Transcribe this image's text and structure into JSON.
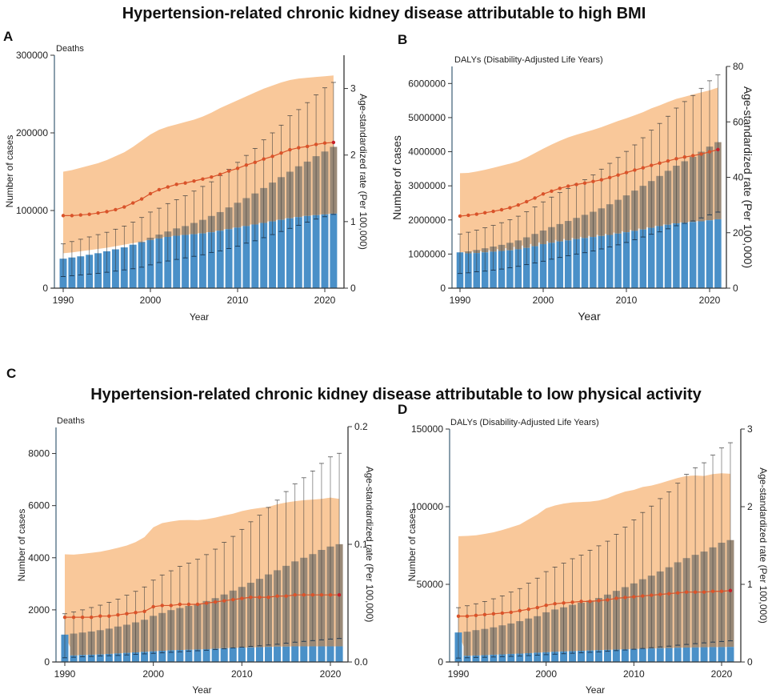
{
  "titles": {
    "top": "Hypertension-related chronic kidney disease attributable to high BMI",
    "bottom": "Hypertension-related chronic kidney disease attributable to low physical activity"
  },
  "colors": {
    "band": "#f9c89a",
    "bar_blue": "#4a90c8",
    "bar_grey": "#9a8a78",
    "rate_line": "#d9532a",
    "axis": "#4a6a80"
  },
  "chart_data": [
    {
      "panel": "A",
      "type": "bar",
      "measure": "Deaths",
      "xlabel": "Year",
      "ylabel": "Number of cases",
      "y2label": "Age-standardized rate (Per 100,000)",
      "ylim": [
        0,
        300000
      ],
      "y2lim": [
        0,
        3.5
      ],
      "yticks": [
        "0",
        "100000",
        "200000",
        "300000"
      ],
      "y2ticks": [
        "0",
        "1",
        "2",
        "3"
      ],
      "xticks": [
        "1990",
        "2000",
        "2010",
        "2020"
      ],
      "years": [
        1990,
        1991,
        1992,
        1993,
        1994,
        1995,
        1996,
        1997,
        1998,
        1999,
        2000,
        2001,
        2002,
        2003,
        2004,
        2005,
        2006,
        2007,
        2008,
        2009,
        2010,
        2011,
        2012,
        2013,
        2014,
        2015,
        2016,
        2017,
        2018,
        2019,
        2020,
        2021
      ],
      "cases_total": [
        38000,
        39500,
        41000,
        43000,
        45000,
        47500,
        50000,
        52500,
        56000,
        60000,
        65000,
        69000,
        73000,
        77000,
        80000,
        84000,
        88000,
        93000,
        98000,
        104000,
        110000,
        116000,
        122000,
        129000,
        136000,
        143000,
        150000,
        157000,
        163000,
        170000,
        176000,
        182000
      ],
      "cases_blue": [
        38000,
        39500,
        41000,
        43000,
        45000,
        47500,
        50000,
        52500,
        56000,
        59000,
        62000,
        64000,
        66000,
        67500,
        68500,
        69500,
        70500,
        72000,
        74000,
        76000,
        78000,
        80000,
        82000,
        84000,
        86000,
        88000,
        90000,
        91500,
        93000,
        94000,
        95000,
        96000
      ],
      "cases_upper": [
        57000,
        60000,
        63000,
        66000,
        69000,
        72000,
        76000,
        80000,
        85000,
        91000,
        98000,
        103000,
        109000,
        114000,
        119000,
        125000,
        131000,
        137000,
        145000,
        153000,
        162000,
        171000,
        180000,
        191000,
        200000,
        210000,
        222000,
        230000,
        239000,
        249000,
        258000,
        265000
      ],
      "cases_lower": [
        15000,
        16000,
        17000,
        18000,
        19000,
        20500,
        22000,
        23500,
        25000,
        27000,
        30000,
        33000,
        35000,
        37000,
        39000,
        41000,
        43000,
        46000,
        48000,
        51000,
        54000,
        58000,
        61000,
        65000,
        69000,
        73000,
        77000,
        81000,
        85000,
        89000,
        92000,
        95000
      ],
      "band_upper": [
        150000,
        152000,
        155000,
        158000,
        161000,
        165000,
        170000,
        175000,
        182000,
        190000,
        198000,
        204000,
        208000,
        211000,
        214000,
        217000,
        221000,
        226000,
        232000,
        237000,
        242000,
        247000,
        252000,
        257000,
        261000,
        265000,
        268000,
        270000,
        271000,
        272000,
        273000,
        274000
      ],
      "band_lower": [
        45000,
        46000,
        47500,
        49000,
        50500,
        52000,
        54000,
        56000,
        58000,
        60000,
        63000,
        65000,
        66500,
        68000,
        69000,
        70000,
        71500,
        73000,
        75000,
        77000,
        79000,
        81000,
        83000,
        85000,
        87000,
        89000,
        91000,
        92500,
        93500,
        94500,
        95500,
        96000
      ],
      "rate": [
        1.09,
        1.09,
        1.1,
        1.11,
        1.13,
        1.15,
        1.18,
        1.22,
        1.28,
        1.34,
        1.42,
        1.48,
        1.52,
        1.56,
        1.58,
        1.61,
        1.64,
        1.67,
        1.71,
        1.76,
        1.8,
        1.85,
        1.89,
        1.94,
        1.98,
        2.03,
        2.08,
        2.11,
        2.13,
        2.16,
        2.18,
        2.19
      ]
    },
    {
      "panel": "B",
      "type": "bar",
      "measure": "DALYs (Disability-Adjusted Life Years)",
      "xlabel": "Year",
      "ylabel": "Number of cases",
      "y2label": "Age-standardized rate (Per 100,000)",
      "ylim": [
        0,
        6500000
      ],
      "y2lim": [
        0,
        80
      ],
      "yticks": [
        "0",
        "1000000",
        "2000000",
        "3000000",
        "4000000",
        "5000000",
        "6000000"
      ],
      "y2ticks": [
        "0",
        "20",
        "40",
        "60",
        "80"
      ],
      "xticks": [
        "1990",
        "2000",
        "2010",
        "2020"
      ],
      "years": [
        1990,
        1991,
        1992,
        1993,
        1994,
        1995,
        1996,
        1997,
        1998,
        1999,
        2000,
        2001,
        2002,
        2003,
        2004,
        2005,
        2006,
        2007,
        2008,
        2009,
        2010,
        2011,
        2012,
        2013,
        2014,
        2015,
        2016,
        2017,
        2018,
        2019,
        2020,
        2021
      ],
      "cases_total": [
        1050000,
        1080000,
        1120000,
        1170000,
        1220000,
        1270000,
        1330000,
        1400000,
        1490000,
        1590000,
        1690000,
        1790000,
        1880000,
        1970000,
        2060000,
        2150000,
        2240000,
        2340000,
        2460000,
        2590000,
        2720000,
        2860000,
        3000000,
        3140000,
        3290000,
        3440000,
        3590000,
        3720000,
        3850000,
        4000000,
        4150000,
        4280000
      ],
      "cases_blue": [
        1050000,
        1020000,
        1030000,
        1050000,
        1070000,
        1090000,
        1110000,
        1140000,
        1180000,
        1230000,
        1290000,
        1330000,
        1370000,
        1400000,
        1440000,
        1470000,
        1500000,
        1530000,
        1560000,
        1600000,
        1640000,
        1680000,
        1720000,
        1770000,
        1820000,
        1860000,
        1900000,
        1920000,
        1940000,
        1960000,
        1990000,
        2020000
      ],
      "cases_upper": [
        1590000,
        1640000,
        1700000,
        1770000,
        1840000,
        1920000,
        2010000,
        2110000,
        2240000,
        2380000,
        2530000,
        2670000,
        2800000,
        2920000,
        3050000,
        3180000,
        3320000,
        3490000,
        3660000,
        3830000,
        4010000,
        4200000,
        4410000,
        4630000,
        4830000,
        5040000,
        5280000,
        5470000,
        5650000,
        5860000,
        6080000,
        6250000
      ],
      "cases_lower": [
        430000,
        450000,
        480000,
        500000,
        530000,
        560000,
        600000,
        640000,
        690000,
        740000,
        790000,
        850000,
        900000,
        950000,
        1000000,
        1040000,
        1090000,
        1150000,
        1210000,
        1270000,
        1340000,
        1420000,
        1500000,
        1580000,
        1650000,
        1740000,
        1830000,
        1900000,
        1970000,
        2060000,
        2150000,
        2230000
      ],
      "band_upper": [
        3370000,
        3380000,
        3420000,
        3470000,
        3530000,
        3590000,
        3650000,
        3720000,
        3830000,
        3960000,
        4090000,
        4210000,
        4320000,
        4420000,
        4500000,
        4570000,
        4640000,
        4720000,
        4810000,
        4900000,
        4980000,
        5070000,
        5160000,
        5270000,
        5360000,
        5460000,
        5550000,
        5610000,
        5680000,
        5740000,
        5800000,
        5880000
      ],
      "band_lower": [
        1050000,
        1060000,
        1080000,
        1100000,
        1130000,
        1160000,
        1190000,
        1230000,
        1270000,
        1320000,
        1360000,
        1400000,
        1430000,
        1460000,
        1490000,
        1520000,
        1550000,
        1580000,
        1610000,
        1650000,
        1690000,
        1730000,
        1770000,
        1810000,
        1850000,
        1890000,
        1920000,
        1940000,
        1960000,
        1980000,
        2000000,
        2020000
      ],
      "rate": [
        26.0,
        26.3,
        26.7,
        27.2,
        27.7,
        28.3,
        29.0,
        30.0,
        31.2,
        32.5,
        34.0,
        35.0,
        36.0,
        36.8,
        37.4,
        37.9,
        38.5,
        39.1,
        39.9,
        40.8,
        41.7,
        42.6,
        43.4,
        44.3,
        45.1,
        45.9,
        46.7,
        47.3,
        47.8,
        48.4,
        49.2,
        50.0
      ]
    },
    {
      "panel": "C",
      "type": "bar",
      "measure": "Deaths",
      "xlabel": "Year",
      "ylabel": "Number of cases",
      "y2label": "Age-standardized rate (Per 100,000)",
      "ylim": [
        0,
        9000
      ],
      "y2lim": [
        0,
        0.2
      ],
      "yticks": [
        "0",
        "2000",
        "4000",
        "6000",
        "8000"
      ],
      "y2ticks": [
        "0.0",
        "0.1",
        "0.2"
      ],
      "xticks": [
        "1990",
        "2000",
        "2010",
        "2020"
      ],
      "years": [
        1990,
        1991,
        1992,
        1993,
        1994,
        1995,
        1996,
        1997,
        1998,
        1999,
        2000,
        2001,
        2002,
        2003,
        2004,
        2005,
        2006,
        2007,
        2008,
        2009,
        2010,
        2011,
        2012,
        2013,
        2014,
        2015,
        2016,
        2017,
        2018,
        2019,
        2020,
        2021
      ],
      "cases_total": [
        1050,
        1090,
        1130,
        1170,
        1220,
        1280,
        1360,
        1430,
        1520,
        1620,
        1770,
        1880,
        1990,
        2070,
        2150,
        2230,
        2340,
        2450,
        2590,
        2740,
        2880,
        3040,
        3190,
        3360,
        3520,
        3690,
        3860,
        4000,
        4140,
        4300,
        4430,
        4520
      ],
      "cases_blue": [
        1050,
        250,
        270,
        280,
        290,
        310,
        330,
        350,
        370,
        390,
        410,
        430,
        450,
        460,
        470,
        480,
        490,
        510,
        530,
        540,
        550,
        560,
        570,
        580,
        590,
        590,
        600,
        600,
        600,
        600,
        600,
        600
      ],
      "cases_upper": [
        1850,
        1920,
        2000,
        2090,
        2180,
        2290,
        2410,
        2560,
        2710,
        2880,
        3140,
        3340,
        3500,
        3670,
        3790,
        3940,
        4120,
        4330,
        4590,
        4820,
        5090,
        5380,
        5630,
        5930,
        6210,
        6540,
        6830,
        7070,
        7330,
        7620,
        7870,
        8010
      ],
      "cases_lower": [
        160,
        180,
        200,
        210,
        230,
        240,
        250,
        270,
        290,
        310,
        330,
        350,
        370,
        390,
        410,
        430,
        450,
        480,
        510,
        540,
        570,
        600,
        620,
        650,
        680,
        720,
        760,
        790,
        820,
        850,
        880,
        900
      ],
      "band_upper": [
        4130,
        4120,
        4150,
        4190,
        4230,
        4300,
        4380,
        4470,
        4600,
        4790,
        5170,
        5330,
        5390,
        5440,
        5450,
        5440,
        5480,
        5540,
        5620,
        5690,
        5790,
        5860,
        5910,
        5950,
        6050,
        6120,
        6170,
        6210,
        6230,
        6260,
        6310,
        6260
      ],
      "band_lower": [
        1050,
        250,
        270,
        280,
        290,
        310,
        330,
        350,
        370,
        390,
        410,
        430,
        450,
        460,
        470,
        480,
        490,
        510,
        530,
        540,
        550,
        560,
        570,
        580,
        590,
        590,
        600,
        600,
        600,
        600,
        600,
        600
      ],
      "rate": [
        0.038,
        0.038,
        0.038,
        0.038,
        0.039,
        0.039,
        0.04,
        0.041,
        0.042,
        0.043,
        0.047,
        0.048,
        0.048,
        0.049,
        0.049,
        0.049,
        0.05,
        0.051,
        0.052,
        0.053,
        0.054,
        0.055,
        0.055,
        0.055,
        0.056,
        0.056,
        0.057,
        0.057,
        0.057,
        0.057,
        0.057,
        0.057
      ]
    },
    {
      "panel": "D",
      "type": "bar",
      "measure": "DALYs (Disability-Adjusted Life Years)",
      "xlabel": "Year",
      "ylabel": "Number of cases",
      "y2label": "Age-standardized rate (Per 100,000)",
      "ylim": [
        0,
        150000
      ],
      "y2lim": [
        0,
        3
      ],
      "yticks": [
        "0",
        "50000",
        "100000",
        "150000"
      ],
      "y2ticks": [
        "0",
        "1",
        "2",
        "3"
      ],
      "xticks": [
        "1990",
        "2000",
        "2010",
        "2020"
      ],
      "years": [
        1990,
        1991,
        1992,
        1993,
        1994,
        1995,
        1996,
        1997,
        1998,
        1999,
        2000,
        2001,
        2002,
        2003,
        2004,
        2005,
        2006,
        2007,
        2008,
        2009,
        2010,
        2011,
        2012,
        2013,
        2014,
        2015,
        2016,
        2017,
        2018,
        2019,
        2020,
        2021
      ],
      "cases_total": [
        19000,
        19500,
        20500,
        21300,
        22300,
        23600,
        24800,
        26300,
        28000,
        29500,
        32000,
        33800,
        35200,
        36800,
        38200,
        39600,
        41200,
        43400,
        45800,
        48200,
        50600,
        53300,
        55600,
        58300,
        61000,
        64200,
        66900,
        69000,
        71100,
        73800,
        76800,
        78500
      ],
      "cases_blue": [
        19000,
        4000,
        4200,
        4400,
        4700,
        4900,
        5200,
        5400,
        5700,
        6000,
        6300,
        6600,
        6800,
        7000,
        7200,
        7400,
        7600,
        7800,
        8000,
        8200,
        8400,
        8500,
        8700,
        8900,
        9000,
        9200,
        9300,
        9400,
        9500,
        9600,
        9600,
        9700
      ],
      "cases_upper": [
        35000,
        36200,
        37500,
        39000,
        40700,
        42600,
        45000,
        47300,
        50700,
        54000,
        58200,
        61100,
        63600,
        66500,
        68800,
        72000,
        74800,
        77800,
        82200,
        86800,
        91500,
        96300,
        100400,
        105200,
        109600,
        115100,
        120800,
        125100,
        128300,
        133200,
        137800,
        141200
      ],
      "cases_lower": [
        2500,
        2700,
        2900,
        3000,
        3200,
        3400,
        3600,
        3800,
        4100,
        4400,
        4700,
        5000,
        5300,
        5600,
        5900,
        6200,
        6500,
        6900,
        7300,
        7700,
        8200,
        8700,
        9200,
        9700,
        10200,
        10800,
        11300,
        11800,
        12300,
        12800,
        13200,
        13600
      ],
      "band_upper": [
        81000,
        81200,
        81600,
        82500,
        83500,
        85000,
        86700,
        88500,
        91800,
        95000,
        99000,
        100800,
        102000,
        102800,
        103000,
        103300,
        104000,
        105500,
        107800,
        109700,
        110800,
        112700,
        113600,
        115100,
        116800,
        118500,
        119800,
        120100,
        119800,
        121000,
        121500,
        121200
      ],
      "band_lower": [
        19000,
        4000,
        4200,
        4400,
        4700,
        4900,
        5200,
        5400,
        5700,
        6000,
        6300,
        6600,
        6800,
        7000,
        7200,
        7400,
        7600,
        7800,
        8000,
        8200,
        8400,
        8500,
        8700,
        8900,
        9000,
        9200,
        9300,
        9400,
        9500,
        9600,
        9600,
        9700
      ],
      "rate": [
        0.59,
        0.59,
        0.6,
        0.61,
        0.62,
        0.63,
        0.64,
        0.66,
        0.68,
        0.7,
        0.73,
        0.75,
        0.76,
        0.77,
        0.78,
        0.78,
        0.79,
        0.8,
        0.82,
        0.83,
        0.84,
        0.85,
        0.86,
        0.87,
        0.88,
        0.89,
        0.9,
        0.9,
        0.9,
        0.91,
        0.91,
        0.92
      ]
    }
  ]
}
